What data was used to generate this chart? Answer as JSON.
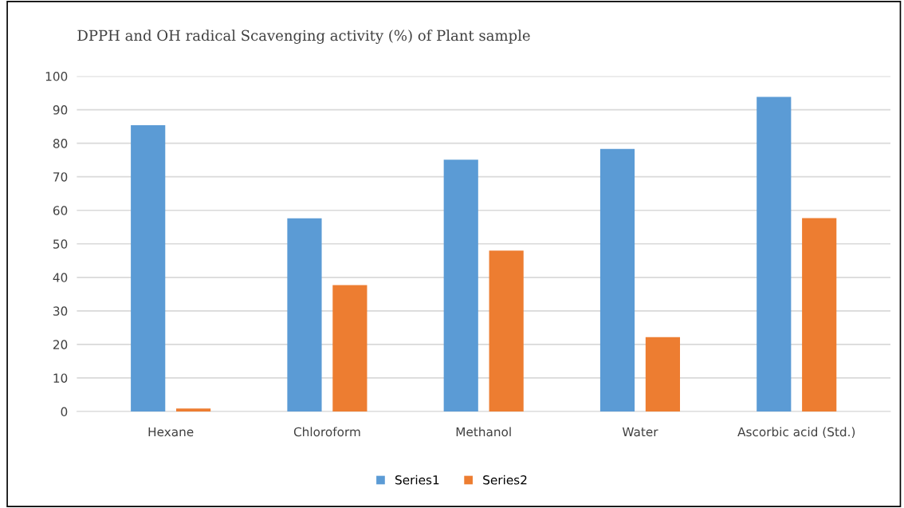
{
  "chart_data": {
    "type": "bar",
    "title": "DPPH and OH radical Scavenging activity (%) of Plant sample",
    "categories": [
      "Hexane",
      "Chloroform",
      "Methanol",
      "Water",
      "Ascorbic acid (Std.)"
    ],
    "series": [
      {
        "name": "Series1",
        "color": "#5b9bd5",
        "values": [
          85.4,
          57.6,
          75.1,
          78.3,
          93.8
        ]
      },
      {
        "name": "Series2",
        "color": "#ed7d31",
        "values": [
          0.9,
          37.7,
          48.0,
          22.2,
          57.7
        ]
      }
    ],
    "ylim": [
      0,
      100
    ],
    "yticks": [
      0,
      10,
      20,
      30,
      40,
      50,
      60,
      70,
      80,
      90,
      100
    ],
    "grid": "y",
    "legend": "bottom"
  }
}
